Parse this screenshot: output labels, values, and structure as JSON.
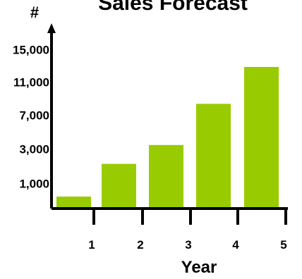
{
  "chart_data": {
    "type": "bar",
    "title": "Sales Forecast",
    "xlabel": "Year",
    "ylabel": "#",
    "categories": [
      "1",
      "2",
      "3",
      "4",
      "5"
    ],
    "values": [
      500,
      2200,
      3600,
      8500,
      13000
    ],
    "yticks": [
      {
        "label": "1,000",
        "value": 1000
      },
      {
        "label": "3,000",
        "value": 3000
      },
      {
        "label": "7,000",
        "value": 7000
      },
      {
        "label": "11,000",
        "value": 11000
      },
      {
        "label": "15,000",
        "value": 15000
      }
    ],
    "bar_color": "#99cc00",
    "grid": false
  }
}
